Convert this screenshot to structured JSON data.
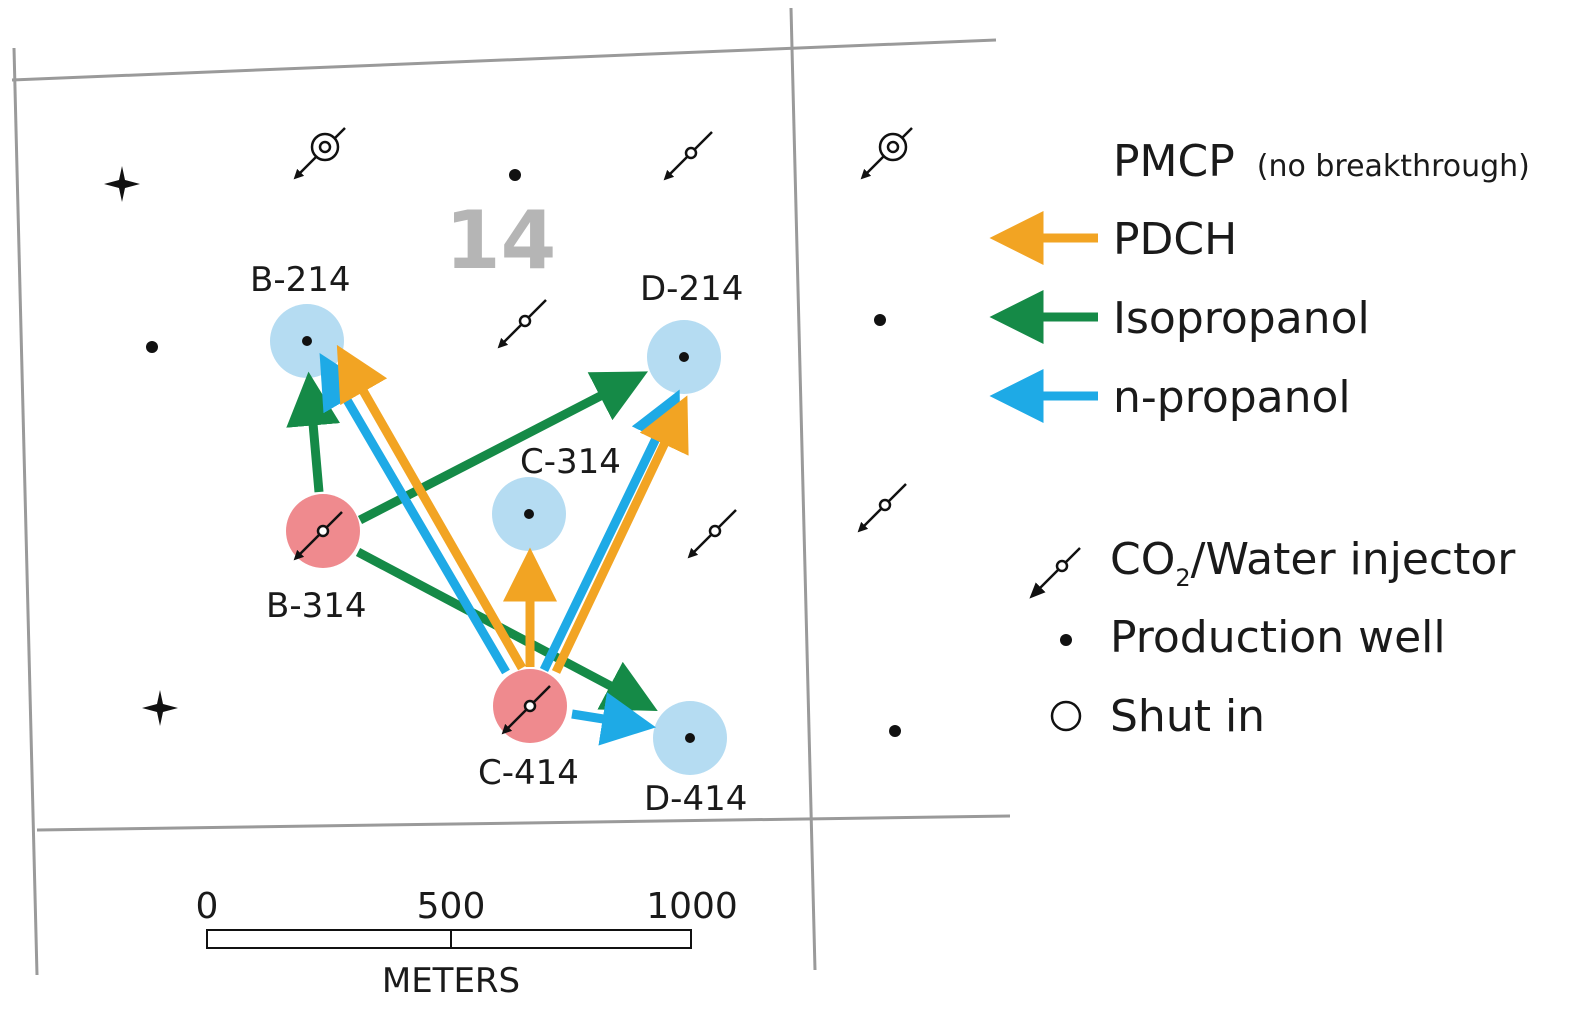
{
  "section_number": "14",
  "colors": {
    "pdch": "#f2a423",
    "isopropanol": "#158a47",
    "n_propanol": "#1eaae6",
    "injector_well": "#ef8a8e",
    "responding_well": "#b5dcf2",
    "section_lines": "#9a9a9a"
  },
  "wells": {
    "b214": "B-214",
    "d214": "D-214",
    "c314": "C-314",
    "b314": "B-314",
    "c414": "C-414",
    "d414": "D-414"
  },
  "legend": {
    "pmcp": "PMCP",
    "pmcp_note": "(no breakthrough)",
    "pdch": "PDCH",
    "isopropanol": "Isopropanol",
    "n_propanol": "n-propanol",
    "injector_prefix": "CO",
    "injector_sub": "2",
    "injector_suffix": "/Water injector",
    "production": "Production well",
    "shut_in": "Shut in"
  },
  "scale": {
    "ticks": [
      "0",
      "500",
      "1000"
    ],
    "unit": "METERS"
  }
}
